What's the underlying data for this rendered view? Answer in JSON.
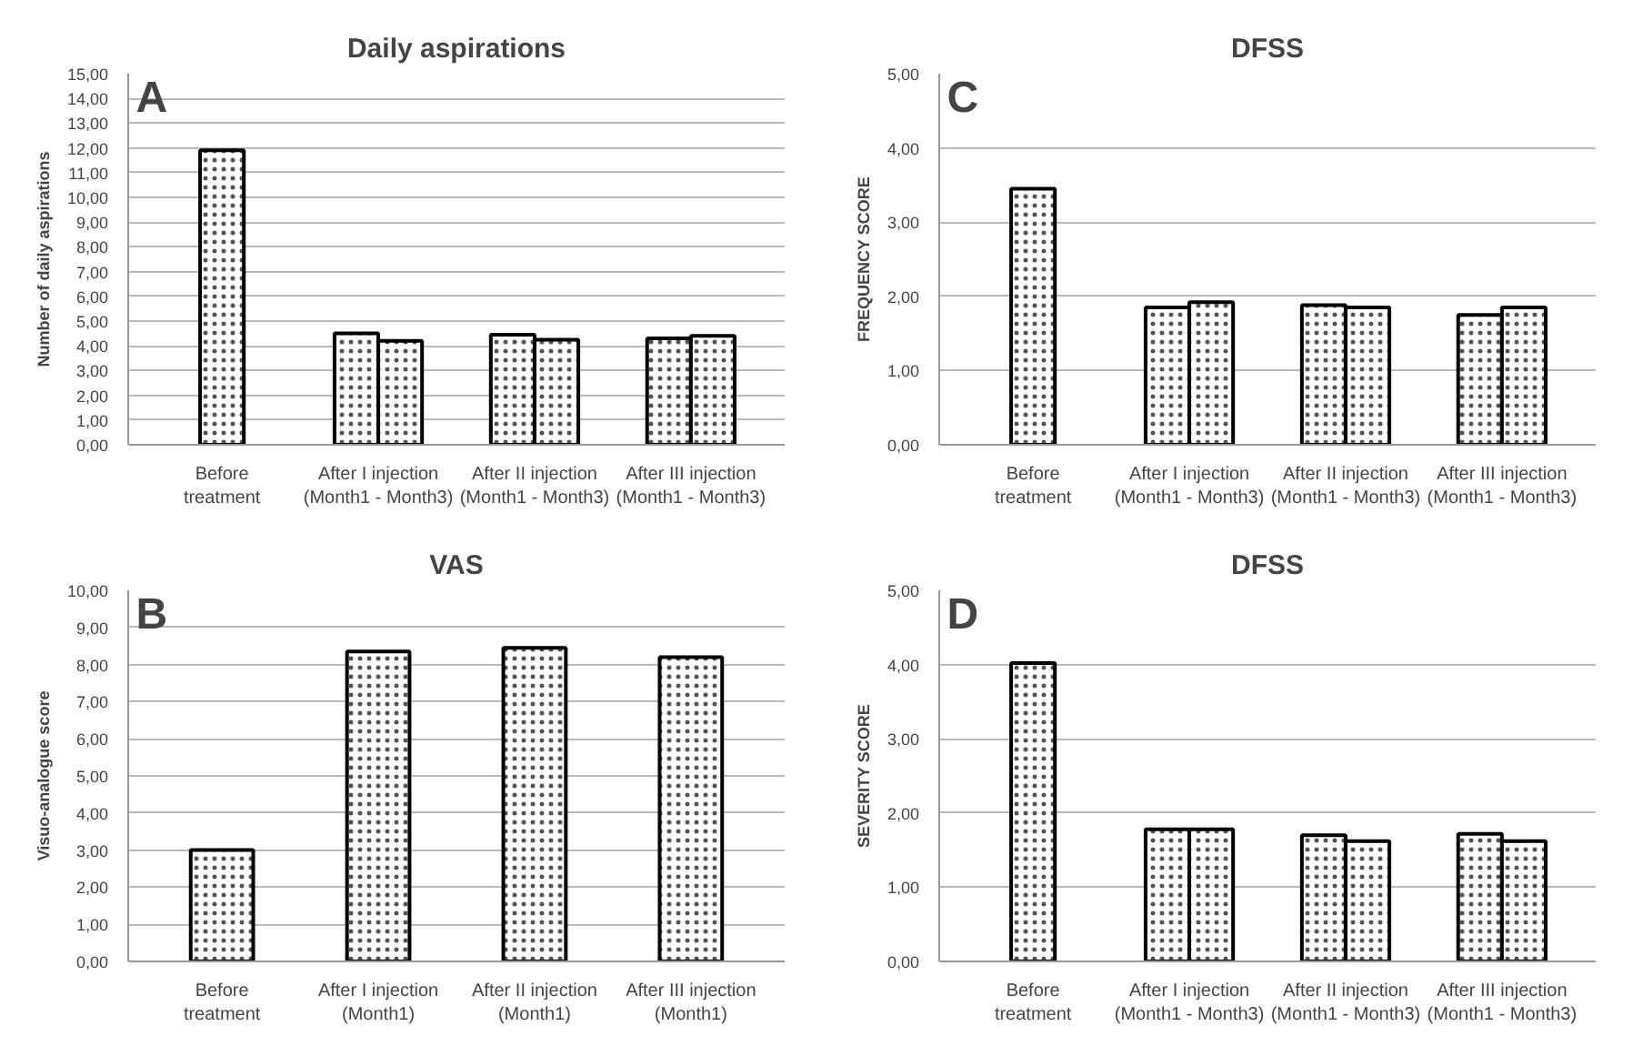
{
  "chart_data": [
    {
      "type": "bar",
      "title": "Daily aspirations",
      "ylabel": "Number of daily aspirations",
      "annotations": [
        "A"
      ],
      "categories": [
        "Before\ntreatment",
        "After I injection\n(Month1 - Month3)",
        "After II injection\n(Month1 - Month3)",
        "After III injection\n(Month1 - Month3)"
      ],
      "series": [
        {
          "color": "#ffffff",
          "values": [
            11.9,
            4.5,
            4.45,
            4.3
          ]
        },
        {
          "color": "#ffffff",
          "values": [
            null,
            4.2,
            4.25,
            4.4
          ]
        }
      ],
      "ylim": [
        0,
        15
      ],
      "yticks": [
        {
          "value": 0,
          "label": "0,00"
        },
        {
          "value": 1,
          "label": "1,00"
        },
        {
          "value": 2,
          "label": "2,00"
        },
        {
          "value": 3,
          "label": "3,00"
        },
        {
          "value": 4,
          "label": "4,00"
        },
        {
          "value": 5,
          "label": "5,00"
        },
        {
          "value": 6,
          "label": "6,00"
        },
        {
          "value": 7,
          "label": "7,00"
        },
        {
          "value": 8,
          "label": "8,00"
        },
        {
          "value": 9,
          "label": "9,00"
        },
        {
          "value": 10,
          "label": "10,00"
        },
        {
          "value": 11,
          "label": "11,00"
        },
        {
          "value": 12,
          "label": "12,00"
        },
        {
          "value": 13,
          "label": "13,00"
        },
        {
          "value": 14,
          "label": "14,00"
        },
        {
          "value": 15,
          "label": "15,00"
        }
      ],
      "grid": "y"
    },
    {
      "type": "bar",
      "title": "DFSS",
      "ylabel": "FREQUENCY SCORE",
      "annotations": [
        "C"
      ],
      "categories": [
        "Before\ntreatment",
        "After I injection\n(Month1 - Month3)",
        "After II injection\n(Month1 - Month3)",
        "After III injection\n(Month1 - Month3)"
      ],
      "series": [
        {
          "color": "#ffffff",
          "values": [
            3.45,
            1.85,
            1.88,
            1.75
          ]
        },
        {
          "color": "#ffffff",
          "values": [
            null,
            1.92,
            1.85,
            1.85
          ]
        }
      ],
      "ylim": [
        0,
        5
      ],
      "yticks": [
        {
          "value": 0,
          "label": "0,00"
        },
        {
          "value": 1,
          "label": "1,00"
        },
        {
          "value": 2,
          "label": "2,00"
        },
        {
          "value": 3,
          "label": "3,00"
        },
        {
          "value": 4,
          "label": "4,00"
        },
        {
          "value": 5,
          "label": "5,00"
        }
      ],
      "grid": "y"
    },
    {
      "type": "bar",
      "title": "VAS",
      "ylabel": "Visuo-analogue score",
      "annotations": [
        "B"
      ],
      "categories": [
        "Before\ntreatment",
        "After I injection\n(Month1)",
        "After II injection\n(Month1)",
        "After III injection\n(Month1)"
      ],
      "series": [
        {
          "color": "#ffffff",
          "values": [
            3.0,
            8.35,
            8.45,
            8.2
          ]
        }
      ],
      "ylim": [
        0,
        10
      ],
      "yticks": [
        {
          "value": 0,
          "label": "0,00"
        },
        {
          "value": 1,
          "label": "1,00"
        },
        {
          "value": 2,
          "label": "2,00"
        },
        {
          "value": 3,
          "label": "3,00"
        },
        {
          "value": 4,
          "label": "4,00"
        },
        {
          "value": 5,
          "label": "5,00"
        },
        {
          "value": 6,
          "label": "6,00"
        },
        {
          "value": 7,
          "label": "7,00"
        },
        {
          "value": 8,
          "label": "8,00"
        },
        {
          "value": 9,
          "label": "9,00"
        },
        {
          "value": 10,
          "label": "10,00"
        }
      ],
      "grid": "y"
    },
    {
      "type": "bar",
      "title": "DFSS",
      "ylabel": "SEVERITY SCORE",
      "annotations": [
        "D"
      ],
      "categories": [
        "Before\ntreatment",
        "After I injection\n(Month1 - Month3)",
        "After II injection\n(Month1 - Month3)",
        "After III injection\n(Month1 - Month3)"
      ],
      "series": [
        {
          "color": "#ffffff",
          "values": [
            4.02,
            1.78,
            1.7,
            1.72
          ]
        },
        {
          "color": "#ffffff",
          "values": [
            null,
            1.78,
            1.62,
            1.62
          ]
        }
      ],
      "ylim": [
        0,
        5
      ],
      "yticks": [
        {
          "value": 0,
          "label": "0,00"
        },
        {
          "value": 1,
          "label": "1,00"
        },
        {
          "value": 2,
          "label": "2,00"
        },
        {
          "value": 3,
          "label": "3,00"
        },
        {
          "value": 4,
          "label": "4,00"
        },
        {
          "value": 5,
          "label": "5,00"
        }
      ],
      "grid": "y"
    }
  ]
}
